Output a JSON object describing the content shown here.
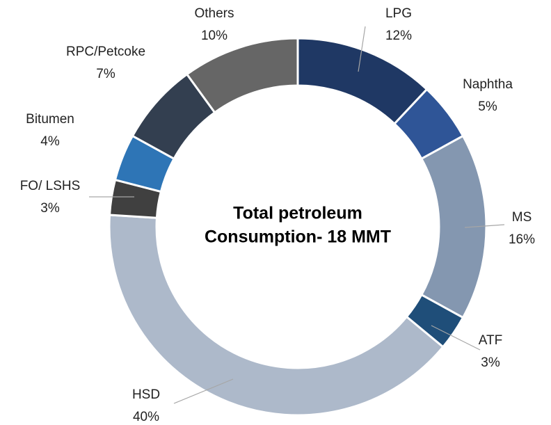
{
  "chart_data": {
    "type": "donut",
    "title_lines": [
      "Total petroleum",
      "Consumption- 18 MMT"
    ],
    "categories": [
      "LPG",
      "Naphtha",
      "MS",
      "ATF",
      "HSD",
      "FO/ LSHS",
      "Bitumen",
      "RPC/Petcoke",
      "Others"
    ],
    "values": [
      12,
      5,
      16,
      3,
      40,
      3,
      4,
      7,
      10
    ],
    "value_labels": [
      "12%",
      "5%",
      "16%",
      "3%",
      "40%",
      "3%",
      "4%",
      "7%",
      "10%"
    ],
    "colors": [
      "#1f3864",
      "#2f5597",
      "#8497b0",
      "#1f4e79",
      "#adb9ca",
      "#404040",
      "#2e75b6",
      "#333f50",
      "#666666"
    ]
  }
}
